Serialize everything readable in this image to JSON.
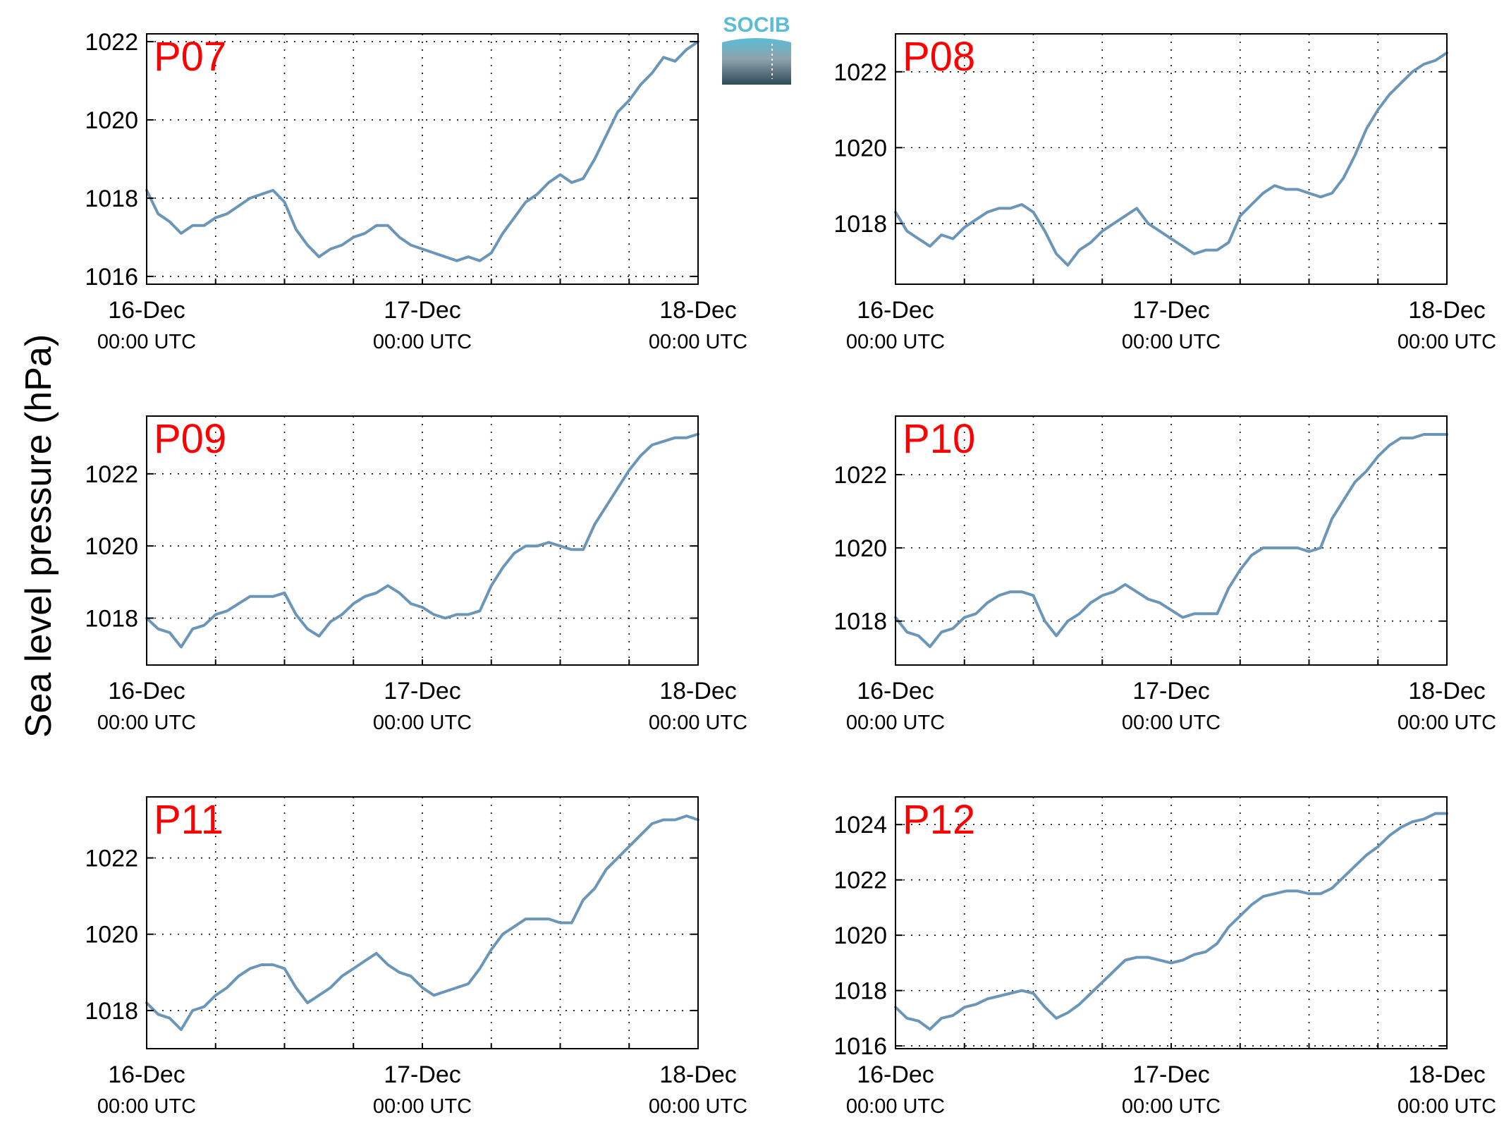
{
  "figure": {
    "ylabel": "Sea level pressure (hPa)",
    "logo_text": "SOCIB",
    "colors": {
      "line": "#6b96b8",
      "panel_label": "#ff0000",
      "logo_top": "#5bbcd6",
      "logo_bottom": "#2e4a57"
    }
  },
  "chart_data": [
    {
      "type": "line",
      "title": "P07",
      "x_ticks": [
        {
          "main": "16-Dec",
          "sub": "00:00 UTC"
        },
        {
          "main": "17-Dec",
          "sub": "00:00 UTC"
        },
        {
          "main": "18-Dec",
          "sub": "00:00 UTC"
        }
      ],
      "x_hours": [
        0,
        24,
        48
      ],
      "xlim": [
        0,
        48
      ],
      "y_ticks": [
        1016,
        1018,
        1020,
        1022
      ],
      "ylim": [
        1015.8,
        1022.2
      ],
      "grid": true,
      "x": [
        0,
        1,
        2,
        3,
        4,
        5,
        6,
        7,
        8,
        9,
        10,
        11,
        12,
        13,
        14,
        15,
        16,
        17,
        18,
        19,
        20,
        21,
        22,
        23,
        24,
        25,
        26,
        27,
        28,
        29,
        30,
        31,
        32,
        33,
        34,
        35,
        36,
        37,
        38,
        39,
        40,
        41,
        42,
        43,
        44,
        45,
        46,
        47,
        48
      ],
      "y": [
        1018.2,
        1017.6,
        1017.4,
        1017.1,
        1017.3,
        1017.3,
        1017.5,
        1017.6,
        1017.8,
        1018.0,
        1018.1,
        1018.2,
        1017.9,
        1017.2,
        1016.8,
        1016.5,
        1016.7,
        1016.8,
        1017.0,
        1017.1,
        1017.3,
        1017.3,
        1017.0,
        1016.8,
        1016.7,
        1016.6,
        1016.5,
        1016.4,
        1016.5,
        1016.4,
        1016.6,
        1017.1,
        1017.5,
        1017.9,
        1018.1,
        1018.4,
        1018.6,
        1018.4,
        1018.5,
        1019.0,
        1019.6,
        1020.2,
        1020.5,
        1020.9,
        1021.2,
        1021.6,
        1021.5,
        1021.8,
        1022.0
      ]
    },
    {
      "type": "line",
      "title": "P08",
      "x_ticks": [
        {
          "main": "16-Dec",
          "sub": "00:00 UTC"
        },
        {
          "main": "17-Dec",
          "sub": "00:00 UTC"
        },
        {
          "main": "18-Dec",
          "sub": "00:00 UTC"
        }
      ],
      "x_hours": [
        0,
        24,
        48
      ],
      "xlim": [
        0,
        48
      ],
      "y_ticks": [
        1018,
        1020,
        1022
      ],
      "ylim": [
        1016.4,
        1023.0
      ],
      "grid": true,
      "x": [
        0,
        1,
        2,
        3,
        4,
        5,
        6,
        7,
        8,
        9,
        10,
        11,
        12,
        13,
        14,
        15,
        16,
        17,
        18,
        19,
        20,
        21,
        22,
        23,
        24,
        25,
        26,
        27,
        28,
        29,
        30,
        31,
        32,
        33,
        34,
        35,
        36,
        37,
        38,
        39,
        40,
        41,
        42,
        43,
        44,
        45,
        46,
        47,
        48
      ],
      "y": [
        1018.3,
        1017.8,
        1017.6,
        1017.4,
        1017.7,
        1017.6,
        1017.9,
        1018.1,
        1018.3,
        1018.4,
        1018.4,
        1018.5,
        1018.3,
        1017.8,
        1017.2,
        1016.9,
        1017.3,
        1017.5,
        1017.8,
        1018.0,
        1018.2,
        1018.4,
        1018.0,
        1017.8,
        1017.6,
        1017.4,
        1017.2,
        1017.3,
        1017.3,
        1017.5,
        1018.2,
        1018.5,
        1018.8,
        1019.0,
        1018.9,
        1018.9,
        1018.8,
        1018.7,
        1018.8,
        1019.2,
        1019.8,
        1020.5,
        1021.0,
        1021.4,
        1021.7,
        1022.0,
        1022.2,
        1022.3,
        1022.5
      ]
    },
    {
      "type": "line",
      "title": "P09",
      "x_ticks": [
        {
          "main": "16-Dec",
          "sub": "00:00 UTC"
        },
        {
          "main": "17-Dec",
          "sub": "00:00 UTC"
        },
        {
          "main": "18-Dec",
          "sub": "00:00 UTC"
        }
      ],
      "x_hours": [
        0,
        24,
        48
      ],
      "xlim": [
        0,
        48
      ],
      "y_ticks": [
        1018,
        1020,
        1022
      ],
      "ylim": [
        1016.7,
        1023.6
      ],
      "grid": true,
      "x": [
        0,
        1,
        2,
        3,
        4,
        5,
        6,
        7,
        8,
        9,
        10,
        11,
        12,
        13,
        14,
        15,
        16,
        17,
        18,
        19,
        20,
        21,
        22,
        23,
        24,
        25,
        26,
        27,
        28,
        29,
        30,
        31,
        32,
        33,
        34,
        35,
        36,
        37,
        38,
        39,
        40,
        41,
        42,
        43,
        44,
        45,
        46,
        47,
        48
      ],
      "y": [
        1018.0,
        1017.7,
        1017.6,
        1017.2,
        1017.7,
        1017.8,
        1018.1,
        1018.2,
        1018.4,
        1018.6,
        1018.6,
        1018.6,
        1018.7,
        1018.1,
        1017.7,
        1017.5,
        1017.9,
        1018.1,
        1018.4,
        1018.6,
        1018.7,
        1018.9,
        1018.7,
        1018.4,
        1018.3,
        1018.1,
        1018.0,
        1018.1,
        1018.1,
        1018.2,
        1018.9,
        1019.4,
        1019.8,
        1020.0,
        1020.0,
        1020.1,
        1020.0,
        1019.9,
        1019.9,
        1020.6,
        1021.1,
        1021.6,
        1022.1,
        1022.5,
        1022.8,
        1022.9,
        1023.0,
        1023.0,
        1023.1
      ]
    },
    {
      "type": "line",
      "title": "P10",
      "x_ticks": [
        {
          "main": "16-Dec",
          "sub": "00:00 UTC"
        },
        {
          "main": "17-Dec",
          "sub": "00:00 UTC"
        },
        {
          "main": "18-Dec",
          "sub": "00:00 UTC"
        }
      ],
      "x_hours": [
        0,
        24,
        48
      ],
      "xlim": [
        0,
        48
      ],
      "y_ticks": [
        1018,
        1020,
        1022
      ],
      "ylim": [
        1016.8,
        1023.6
      ],
      "grid": true,
      "x": [
        0,
        1,
        2,
        3,
        4,
        5,
        6,
        7,
        8,
        9,
        10,
        11,
        12,
        13,
        14,
        15,
        16,
        17,
        18,
        19,
        20,
        21,
        22,
        23,
        24,
        25,
        26,
        27,
        28,
        29,
        30,
        31,
        32,
        33,
        34,
        35,
        36,
        37,
        38,
        39,
        40,
        41,
        42,
        43,
        44,
        45,
        46,
        47,
        48
      ],
      "y": [
        1018.1,
        1017.7,
        1017.6,
        1017.3,
        1017.7,
        1017.8,
        1018.1,
        1018.2,
        1018.5,
        1018.7,
        1018.8,
        1018.8,
        1018.7,
        1018.0,
        1017.6,
        1018.0,
        1018.2,
        1018.5,
        1018.7,
        1018.8,
        1019.0,
        1018.8,
        1018.6,
        1018.5,
        1018.3,
        1018.1,
        1018.2,
        1018.2,
        1018.2,
        1018.9,
        1019.4,
        1019.8,
        1020.0,
        1020.0,
        1020.0,
        1020.0,
        1019.9,
        1020.0,
        1020.8,
        1021.3,
        1021.8,
        1022.1,
        1022.5,
        1022.8,
        1023.0,
        1023.0,
        1023.1,
        1023.1,
        1023.1
      ]
    },
    {
      "type": "line",
      "title": "P11",
      "x_ticks": [
        {
          "main": "16-Dec",
          "sub": "00:00 UTC"
        },
        {
          "main": "17-Dec",
          "sub": "00:00 UTC"
        },
        {
          "main": "18-Dec",
          "sub": "00:00 UTC"
        }
      ],
      "x_hours": [
        0,
        24,
        48
      ],
      "xlim": [
        0,
        48
      ],
      "y_ticks": [
        1018,
        1020,
        1022
      ],
      "ylim": [
        1017.0,
        1023.6
      ],
      "grid": true,
      "x": [
        0,
        1,
        2,
        3,
        4,
        5,
        6,
        7,
        8,
        9,
        10,
        11,
        12,
        13,
        14,
        15,
        16,
        17,
        18,
        19,
        20,
        21,
        22,
        23,
        24,
        25,
        26,
        27,
        28,
        29,
        30,
        31,
        32,
        33,
        34,
        35,
        36,
        37,
        38,
        39,
        40,
        41,
        42,
        43,
        44,
        45,
        46,
        47,
        48
      ],
      "y": [
        1018.2,
        1017.9,
        1017.8,
        1017.5,
        1018.0,
        1018.1,
        1018.4,
        1018.6,
        1018.9,
        1019.1,
        1019.2,
        1019.2,
        1019.1,
        1018.6,
        1018.2,
        1018.4,
        1018.6,
        1018.9,
        1019.1,
        1019.3,
        1019.5,
        1019.2,
        1019.0,
        1018.9,
        1018.6,
        1018.4,
        1018.5,
        1018.6,
        1018.7,
        1019.1,
        1019.6,
        1020.0,
        1020.2,
        1020.4,
        1020.4,
        1020.4,
        1020.3,
        1020.3,
        1020.9,
        1021.2,
        1021.7,
        1022.0,
        1022.3,
        1022.6,
        1022.9,
        1023.0,
        1023.0,
        1023.1,
        1023.0
      ]
    },
    {
      "type": "line",
      "title": "P12",
      "x_ticks": [
        {
          "main": "16-Dec",
          "sub": "00:00 UTC"
        },
        {
          "main": "17-Dec",
          "sub": "00:00 UTC"
        },
        {
          "main": "18-Dec",
          "sub": "00:00 UTC"
        }
      ],
      "x_hours": [
        0,
        24,
        48
      ],
      "xlim": [
        0,
        48
      ],
      "y_ticks": [
        1016,
        1018,
        1020,
        1022,
        1024
      ],
      "ylim": [
        1015.9,
        1025.0
      ],
      "grid": true,
      "x": [
        0,
        1,
        2,
        3,
        4,
        5,
        6,
        7,
        8,
        9,
        10,
        11,
        12,
        13,
        14,
        15,
        16,
        17,
        18,
        19,
        20,
        21,
        22,
        23,
        24,
        25,
        26,
        27,
        28,
        29,
        30,
        31,
        32,
        33,
        34,
        35,
        36,
        37,
        38,
        39,
        40,
        41,
        42,
        43,
        44,
        45,
        46,
        47,
        48
      ],
      "y": [
        1017.4,
        1017.0,
        1016.9,
        1016.6,
        1017.0,
        1017.1,
        1017.4,
        1017.5,
        1017.7,
        1017.8,
        1017.9,
        1018.0,
        1017.9,
        1017.4,
        1017.0,
        1017.2,
        1017.5,
        1017.9,
        1018.3,
        1018.7,
        1019.1,
        1019.2,
        1019.2,
        1019.1,
        1019.0,
        1019.1,
        1019.3,
        1019.4,
        1019.7,
        1020.3,
        1020.7,
        1021.1,
        1021.4,
        1021.5,
        1021.6,
        1021.6,
        1021.5,
        1021.5,
        1021.7,
        1022.1,
        1022.5,
        1022.9,
        1023.2,
        1023.6,
        1023.9,
        1024.1,
        1024.2,
        1024.4,
        1024.4
      ]
    }
  ]
}
